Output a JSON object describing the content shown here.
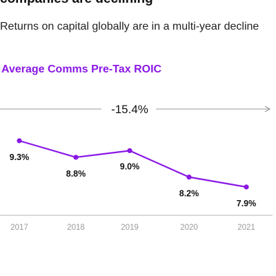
{
  "header": {
    "headline": "companies are declining",
    "subtitle": "Returns on capital globally are in a multi-year decline"
  },
  "chart_data": {
    "type": "line",
    "title": "Average Comms Pre-Tax ROIC",
    "categories": [
      "2017",
      "2018",
      "2019",
      "2020",
      "2021"
    ],
    "values": [
      9.3,
      8.8,
      9.0,
      8.2,
      7.9
    ],
    "value_labels": [
      "9.3%",
      "8.8%",
      "9.0%",
      "8.2%",
      "7.9%"
    ],
    "annotation": "-15.4%",
    "line_color": "#8a17e6",
    "axis_color": "#9a9a9a",
    "grid": false,
    "xlabel": "",
    "ylabel": ""
  }
}
